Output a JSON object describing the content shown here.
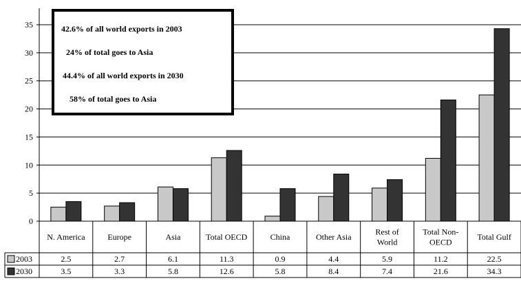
{
  "chart_data": {
    "type": "bar",
    "categories": [
      "N. America",
      "Europe",
      "Asia",
      "Total OECD",
      "China",
      "Other Asia",
      "Rest of World",
      "Total Non-OECD",
      "Total Gulf"
    ],
    "category_lines": [
      [
        "N. America"
      ],
      [
        "Europe"
      ],
      [
        "Asia"
      ],
      [
        "Total OECD"
      ],
      [
        "China"
      ],
      [
        "Other Asia"
      ],
      [
        "Rest of",
        "World"
      ],
      [
        "Total Non-",
        "OECD"
      ],
      [
        "Total Gulf"
      ]
    ],
    "series": [
      {
        "name": "2003",
        "color": "#c8c8c8",
        "values": [
          2.5,
          2.7,
          6.1,
          11.3,
          0.9,
          4.4,
          5.9,
          11.2,
          22.5
        ]
      },
      {
        "name": "2030",
        "color": "#333333",
        "values": [
          3.5,
          3.3,
          5.8,
          12.6,
          5.8,
          8.4,
          7.4,
          21.6,
          34.3
        ]
      }
    ],
    "value_labels": [
      [
        "2.5",
        "2.7",
        "6.1",
        "11.3",
        "0.9",
        "4.4",
        "5.9",
        "11.2",
        "22.5"
      ],
      [
        "3.5",
        "3.3",
        "5.8",
        "12.6",
        "5.8",
        "8.4",
        "7.4",
        "21.6",
        "34.3"
      ]
    ],
    "ylim": [
      0,
      35
    ],
    "yticks": [
      0,
      5,
      10,
      15,
      20,
      25,
      30,
      35
    ],
    "grid": true,
    "legend": "data-table",
    "annotations": [
      "42.6% of all world exports in 2003",
      "24% of total goes to Asia",
      "44.4% of all world exports in 2030",
      "58% of total goes to Asia"
    ]
  }
}
